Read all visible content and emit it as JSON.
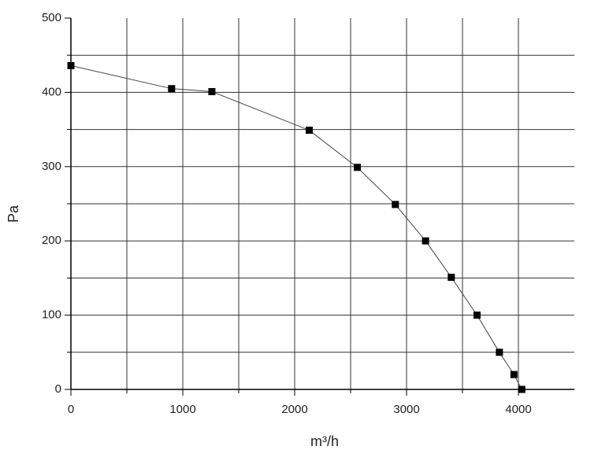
{
  "chart_data": {
    "type": "line",
    "x_label": "m³/h",
    "y_label": "Pa",
    "x": [
      0,
      900,
      1260,
      2130,
      2560,
      2900,
      3170,
      3400,
      3630,
      3830,
      3960,
      4030
    ],
    "series": [
      {
        "color": "#000000",
        "values": [
          436,
          405,
          401,
          349,
          299,
          249,
          200,
          151,
          100,
          50,
          20,
          0
        ]
      }
    ],
    "xlim": [
      0,
      4500
    ],
    "xticks": [
      0,
      1000,
      2000,
      3000,
      4000
    ],
    "x_minor_ticks": [
      500,
      1500,
      2500,
      3500
    ],
    "ylim": [
      0,
      500
    ],
    "yticks": [
      0,
      100,
      200,
      300,
      400,
      500
    ],
    "y_minor_ticks": [
      50,
      150,
      250,
      350,
      450
    ],
    "grid": true
  }
}
